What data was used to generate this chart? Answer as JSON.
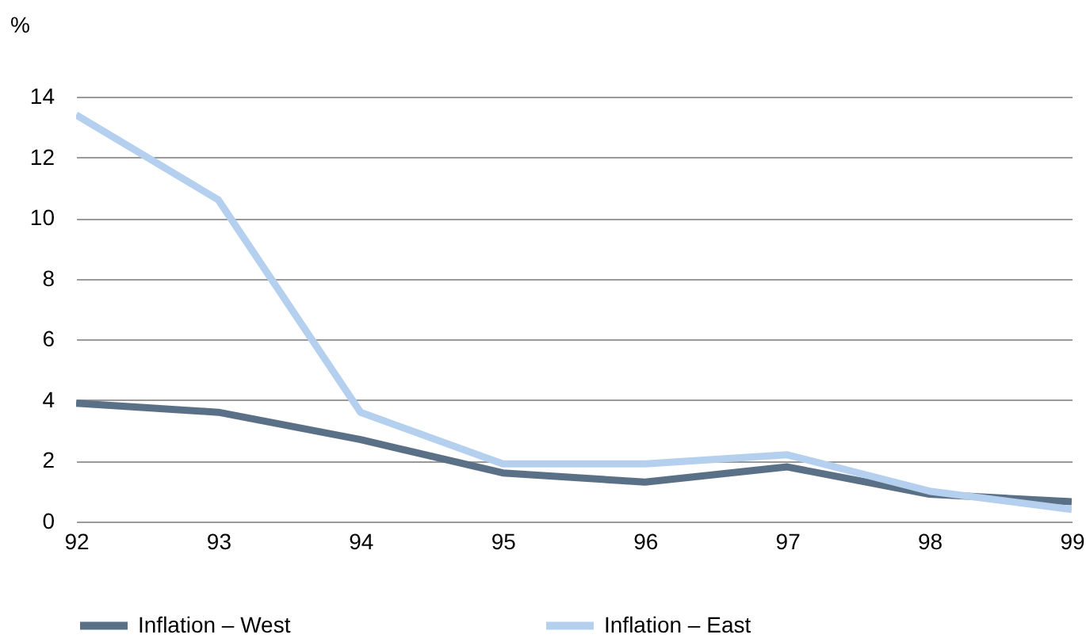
{
  "chart_data": {
    "type": "line",
    "ylabel": "%",
    "categories": [
      "92",
      "93",
      "94",
      "95",
      "96",
      "97",
      "98",
      "99"
    ],
    "series": [
      {
        "name": "Inflation – West",
        "color": "#5a7087",
        "values": [
          3.9,
          3.6,
          2.7,
          1.6,
          1.3,
          1.8,
          0.9,
          0.65
        ]
      },
      {
        "name": "Inflation – East",
        "color": "#b4d0ee",
        "values": [
          13.4,
          10.6,
          3.6,
          1.9,
          1.9,
          2.2,
          1.0,
          0.4
        ]
      }
    ],
    "ylim": [
      0,
      14
    ],
    "yticks": [
      0,
      2,
      4,
      6,
      8,
      10,
      12,
      14
    ],
    "grid": "y",
    "legend": "bottom",
    "marker": "none",
    "line_style": "solid"
  }
}
